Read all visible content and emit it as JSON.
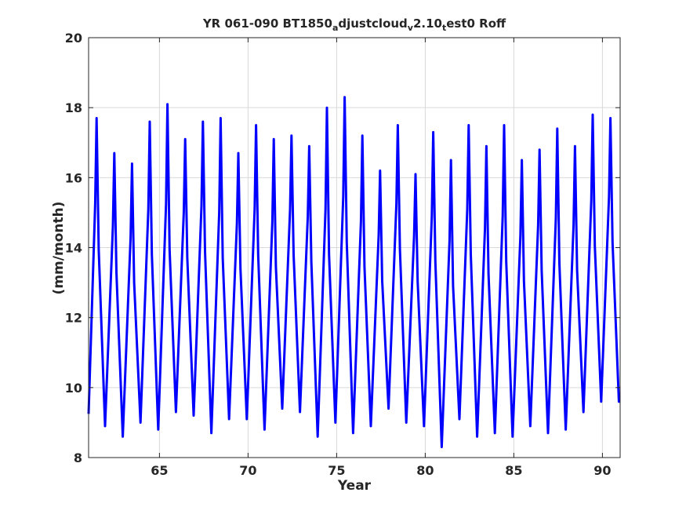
{
  "chart_data": {
    "type": "line",
    "title": {
      "parts": [
        {
          "text": "YR 061-090 BT1850",
          "sub": false
        },
        {
          "text": "a",
          "sub": true
        },
        {
          "text": "djustcloud",
          "sub": false
        },
        {
          "text": "v",
          "sub": true
        },
        {
          "text": "2.10",
          "sub": false
        },
        {
          "text": "t",
          "sub": true
        },
        {
          "text": "est0 Roff",
          "sub": false
        }
      ]
    },
    "xlabel": "Year",
    "ylabel": "(mm/month)",
    "xlim": [
      61,
      91
    ],
    "ylim": [
      8,
      20
    ],
    "xticks": [
      65,
      70,
      75,
      80,
      85,
      90
    ],
    "yticks": [
      8,
      10,
      12,
      14,
      16,
      18,
      20
    ],
    "grid": true,
    "series": [
      {
        "color": "#0000ff",
        "annual_peaks": [
          17.7,
          16.7,
          16.4,
          17.6,
          18.1,
          17.1,
          17.6,
          17.7,
          16.7,
          17.5,
          17.1,
          17.2,
          16.9,
          18.0,
          18.3,
          17.2,
          16.2,
          17.5,
          16.1,
          17.3,
          16.5,
          17.5,
          16.9,
          17.5,
          16.5,
          16.8,
          17.4,
          16.9,
          17.8,
          17.7
        ],
        "annual_minima": [
          9.2,
          8.9,
          8.6,
          9.0,
          8.8,
          9.3,
          9.2,
          8.7,
          9.1,
          9.1,
          8.8,
          9.4,
          9.3,
          8.6,
          9.0,
          8.7,
          8.9,
          9.4,
          9.0,
          8.9,
          8.3,
          9.1,
          8.6,
          8.7,
          8.6,
          8.9,
          8.7,
          8.8,
          9.3,
          9.6
        ]
      }
    ]
  }
}
